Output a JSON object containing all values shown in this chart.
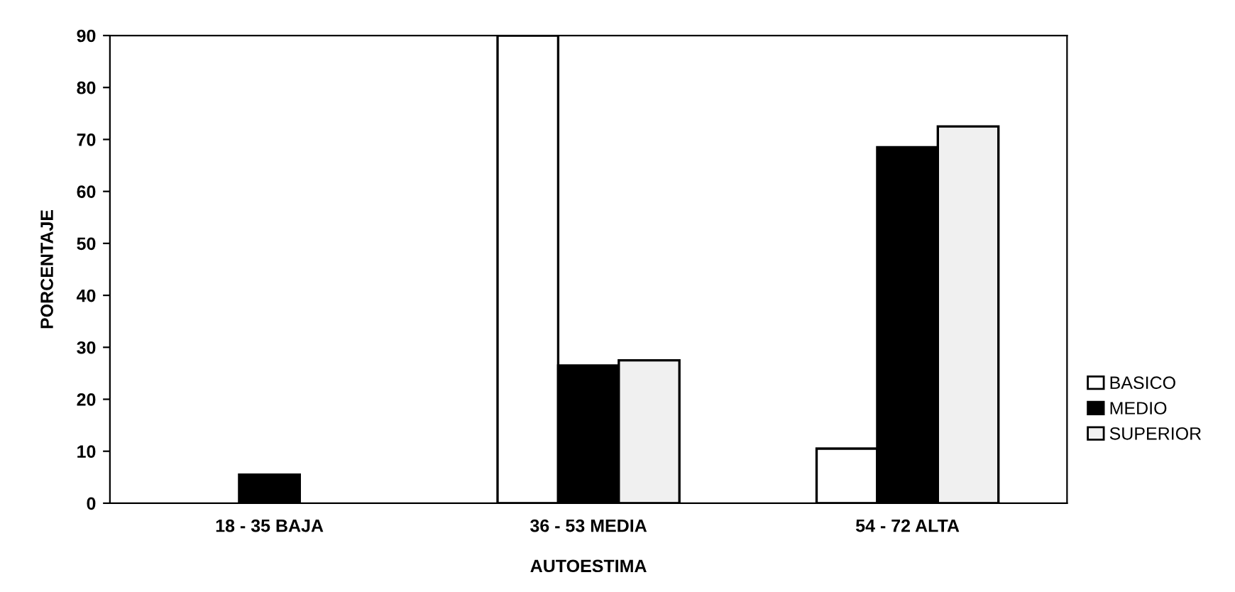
{
  "chart_data": {
    "type": "bar",
    "xlabel": "AUTOESTIMA",
    "ylabel": "PORCENTAJE",
    "categories": [
      "18 - 35 BAJA",
      "36 - 53 MEDIA",
      "54 - 72 ALTA"
    ],
    "series": [
      {
        "name": "BASICO",
        "color": "#ffffff",
        "values": [
          null,
          90,
          10.5
        ]
      },
      {
        "name": "MEDIO",
        "color": "#000000",
        "values": [
          5.5,
          26.5,
          68.5
        ]
      },
      {
        "name": "SUPERIOR",
        "color": "#f0f0f0",
        "values": [
          null,
          27.5,
          72.5
        ]
      }
    ],
    "ylim": [
      0,
      90
    ],
    "yticks": [
      0,
      10,
      20,
      30,
      40,
      50,
      60,
      70,
      80,
      90
    ],
    "grid": false,
    "legend": "right"
  }
}
